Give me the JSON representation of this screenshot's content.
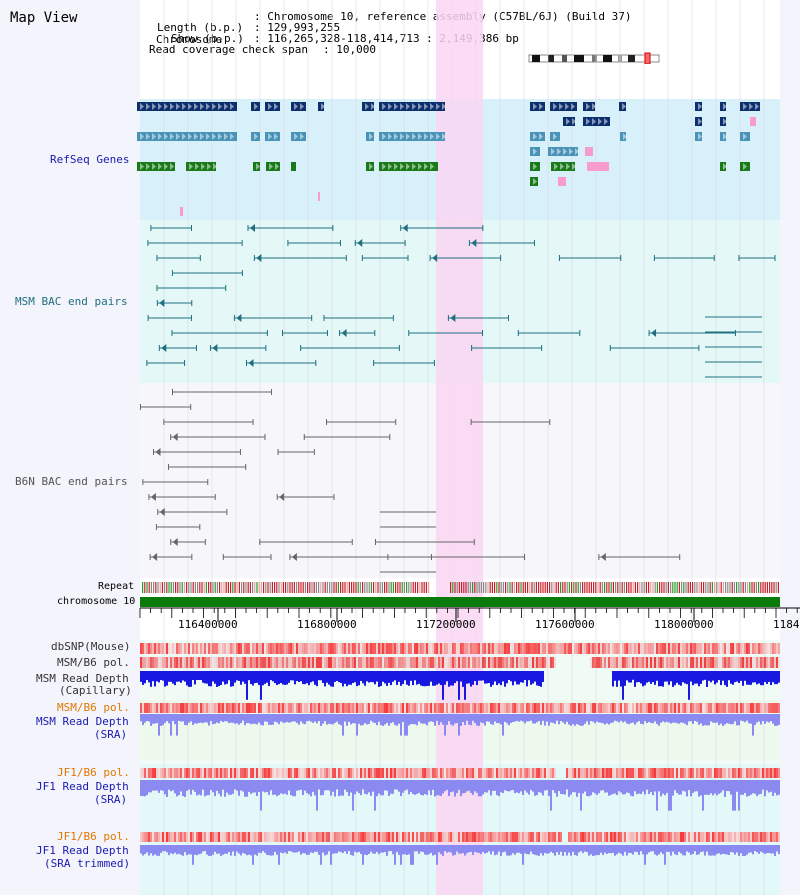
{
  "page": {
    "title": "Map View"
  },
  "info": {
    "chromosome_label": "Chromosome",
    "chromosome_value": ": Chromosome 10, reference assembly (C57BL/6J) (Build 37)",
    "length_label": "Length (b.p.)",
    "length_value": ": 129,993,255",
    "show_label": "Show (b.p.)",
    "show_value": ": 116,265,328-118,414,713 : 2,149,386 bp",
    "coverage_label": "Read coverage check span",
    "coverage_value": ": 10,000"
  },
  "tracks": {
    "refseq": "RefSeq Genes",
    "msm_bac": "MSM BAC end pairs",
    "b6n_bac": "B6N BAC end pairs",
    "repeat": "Repeat",
    "chromosome": "chromosome 10",
    "dbsnp": "dbSNP(Mouse)",
    "msm_b6_pol_1": "MSM/B6 pol.",
    "msm_read_depth_cap_1": "MSM Read Depth",
    "msm_read_depth_cap_2": "(Capillary)",
    "msm_b6_pol_2": "MSM/B6 pol.",
    "msm_read_depth_sra_1": "MSM Read Depth",
    "msm_read_depth_sra_2": "(SRA)",
    "jf1_b6_pol_1": "JF1/B6 pol.",
    "jf1_read_depth_sra_1": "JF1 Read Depth",
    "jf1_read_depth_sra_2": "(SRA)",
    "jf1_b6_pol_2": "JF1/B6 pol.",
    "jf1_read_depth_trim_1": "JF1 Read Depth",
    "jf1_read_depth_trim_2": "(SRA trimmed)"
  },
  "ruler": {
    "ticks": [
      "116400000",
      "116800000",
      "117200000",
      "117600000",
      "118000000",
      "1184"
    ]
  },
  "colors": {
    "refseq_bg": "#d8f0fa",
    "msm_bg": "#e4f8f8",
    "b6n_bg": "#f7f7fb",
    "highlight": "#f9d6f2",
    "chromosome_bar": "#0a7a0a",
    "gene_dark": "#0d2f6e",
    "gene_mid": "#4a93b8",
    "gene_green": "#1a7a1a",
    "gene_pink": "#f79ccc",
    "depth_blue": "#1818e0",
    "depth_light": "#8a8af0"
  }
}
